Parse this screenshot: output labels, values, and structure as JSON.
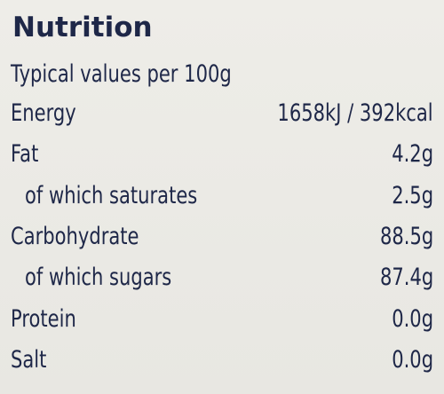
{
  "header": {
    "title": "Nutrition",
    "subtitle": "Typical values per 100g"
  },
  "rows": [
    {
      "label": "Energy",
      "value": "1658kJ / 392kcal"
    },
    {
      "label": "Fat",
      "value": "4.2g",
      "children": [
        {
          "label": "of which saturates",
          "value": "2.5g"
        }
      ]
    },
    {
      "label": "Carbohydrate",
      "value": "88.5g",
      "children": [
        {
          "label": "of which sugars",
          "value": "87.4g"
        }
      ]
    },
    {
      "label": "Protein",
      "value": "0.0g"
    },
    {
      "label": "Salt",
      "value": "0.0g"
    }
  ]
}
